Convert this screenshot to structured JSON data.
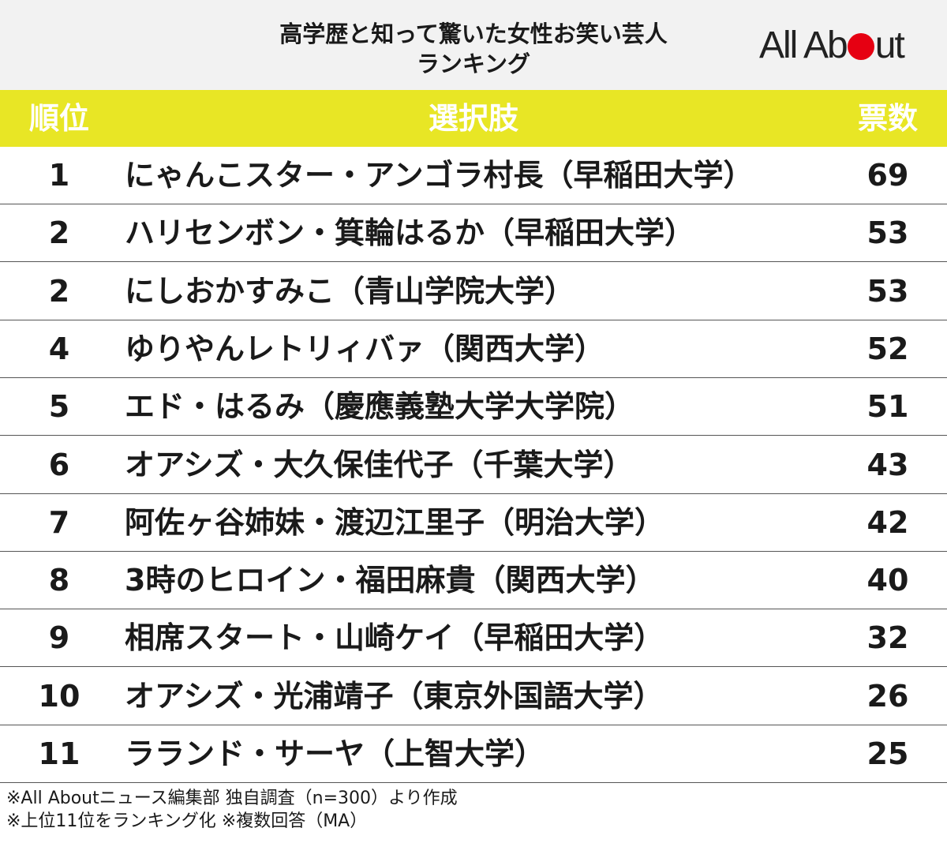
{
  "header": {
    "title_line1": "高学歴と知って驚いた女性お笑い芸人",
    "title_line2": "ランキング",
    "logo_part1": "All Ab",
    "logo_part2": "ut",
    "logo_dot_color": "#e60012"
  },
  "table": {
    "header_color": "#e8e625",
    "columns": {
      "rank": "順位",
      "choice": "選択肢",
      "votes": "票数"
    },
    "rows": [
      {
        "rank": "1",
        "name": "にゃんこスター・アンゴラ村長（早稲田大学）",
        "votes": "69"
      },
      {
        "rank": "2",
        "name": "ハリセンボン・箕輪はるか（早稲田大学）",
        "votes": "53"
      },
      {
        "rank": "2",
        "name": "にしおかすみこ（青山学院大学）",
        "votes": "53"
      },
      {
        "rank": "4",
        "name": "ゆりやんレトリィバァ（関西大学）",
        "votes": "52"
      },
      {
        "rank": "5",
        "name": "エド・はるみ（慶應義塾大学大学院）",
        "votes": "51"
      },
      {
        "rank": "6",
        "name": "オアシズ・大久保佳代子（千葉大学）",
        "votes": "43"
      },
      {
        "rank": "7",
        "name": "阿佐ヶ谷姉妹・渡辺江里子（明治大学）",
        "votes": "42"
      },
      {
        "rank": "8",
        "name": "3時のヒロイン・福田麻貴（関西大学）",
        "votes": "40"
      },
      {
        "rank": "9",
        "name": "相席スタート・山崎ケイ（早稲田大学）",
        "votes": "32"
      },
      {
        "rank": "10",
        "name": "オアシズ・光浦靖子（東京外国語大学）",
        "votes": "26"
      },
      {
        "rank": "11",
        "name": "ラランド・サーヤ（上智大学）",
        "votes": "25"
      }
    ]
  },
  "footnotes": {
    "line1": "※All Aboutニュース編集部 独自調査（n=300）より作成",
    "line2": "※上位11位をランキング化 ※複数回答（MA）"
  }
}
